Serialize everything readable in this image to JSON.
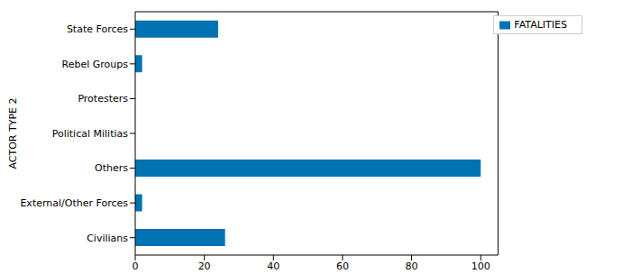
{
  "chart_data": {
    "type": "bar",
    "orientation": "horizontal",
    "ylabel": "ACTOR TYPE 2",
    "categories": [
      "Civilians",
      "External/Other Forces",
      "Others",
      "Political Militias",
      "Protesters",
      "Rebel Groups",
      "State Forces"
    ],
    "series": [
      {
        "name": "FATALITIES",
        "color": "#0173b2",
        "values": [
          26,
          2,
          100,
          0,
          0,
          2,
          24
        ]
      }
    ],
    "xlim": [
      0,
      105
    ],
    "xticks": [
      0,
      20,
      40,
      60,
      80,
      100
    ],
    "grid": false,
    "legend": "upper right"
  }
}
